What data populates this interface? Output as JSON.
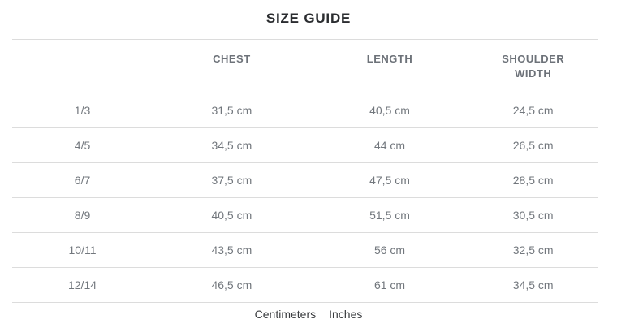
{
  "title": "SIZE GUIDE",
  "table": {
    "columns": {
      "size": "",
      "chest": "CHEST",
      "length": "LENGTH",
      "shoulder": "SHOULDER WIDTH"
    },
    "rows": [
      {
        "size": "1/3",
        "chest": "31,5 cm",
        "length": "40,5 cm",
        "shoulder": "24,5 cm"
      },
      {
        "size": "4/5",
        "chest": "34,5 cm",
        "length": "44 cm",
        "shoulder": "26,5 cm"
      },
      {
        "size": "6/7",
        "chest": "37,5 cm",
        "length": "47,5 cm",
        "shoulder": "28,5 cm"
      },
      {
        "size": "8/9",
        "chest": "40,5 cm",
        "length": "51,5 cm",
        "shoulder": "30,5 cm"
      },
      {
        "size": "10/11",
        "chest": "43,5 cm",
        "length": "56 cm",
        "shoulder": "32,5 cm"
      },
      {
        "size": "12/14",
        "chest": "46,5 cm",
        "length": "61 cm",
        "shoulder": "34,5 cm"
      }
    ]
  },
  "unit_toggle": {
    "centimeters_label": "Centimeters",
    "inches_label": "Inches",
    "active_unit": "centimeters"
  },
  "colors": {
    "divider": "#dcdcdc",
    "header_text": "#6d7279",
    "body_text": "#72777d",
    "title_text": "#2b2d30",
    "link_text": "#3a3c3f"
  }
}
